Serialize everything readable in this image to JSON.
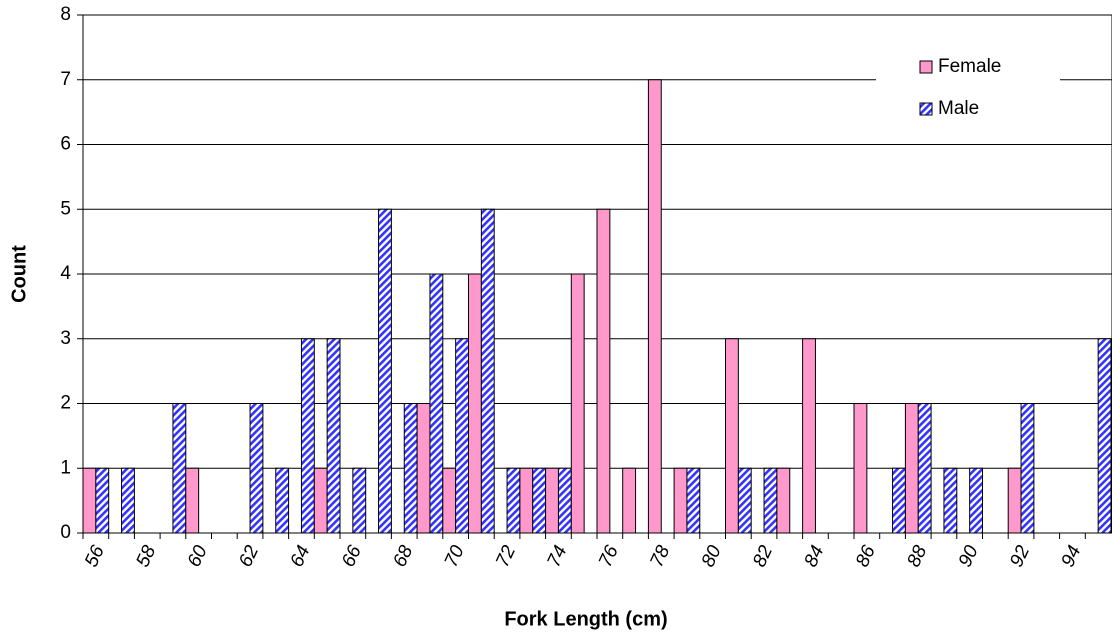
{
  "chart_data": {
    "type": "bar",
    "x_label": "Fork Length (cm)",
    "y_label": "Count",
    "categories": [
      "56",
      null,
      "58",
      null,
      "60",
      null,
      "62",
      null,
      "64",
      null,
      "66",
      null,
      "68",
      null,
      "70",
      null,
      "72",
      null,
      "74",
      null,
      "76",
      null,
      "78",
      null,
      "80",
      null,
      "82",
      null,
      "84",
      null,
      "86",
      null,
      "88",
      null,
      "90",
      null,
      "92",
      null,
      "94",
      null
    ],
    "series": [
      {
        "name": "Female",
        "color": "#ff99cc",
        "hatch": false,
        "values": [
          1,
          0,
          0,
          0,
          1,
          0,
          0,
          0,
          0,
          1,
          0,
          0,
          0,
          2,
          1,
          4,
          0,
          1,
          1,
          4,
          5,
          1,
          7,
          1,
          0,
          3,
          0,
          1,
          3,
          0,
          2,
          0,
          2,
          0,
          0,
          0,
          1,
          0,
          0,
          0
        ]
      },
      {
        "name": "Male",
        "color": "#3333ff",
        "hatch": true,
        "values": [
          1,
          1,
          0,
          2,
          0,
          0,
          2,
          1,
          3,
          3,
          1,
          5,
          2,
          4,
          3,
          5,
          1,
          1,
          1,
          0,
          0,
          0,
          0,
          1,
          0,
          1,
          1,
          0,
          0,
          0,
          0,
          1,
          2,
          1,
          1,
          0,
          2,
          0,
          0,
          3
        ]
      }
    ],
    "ylim": [
      0,
      8
    ],
    "yticks": [
      0,
      1,
      2,
      3,
      4,
      5,
      6,
      7,
      8
    ],
    "grid": true,
    "legend": "top-right"
  }
}
